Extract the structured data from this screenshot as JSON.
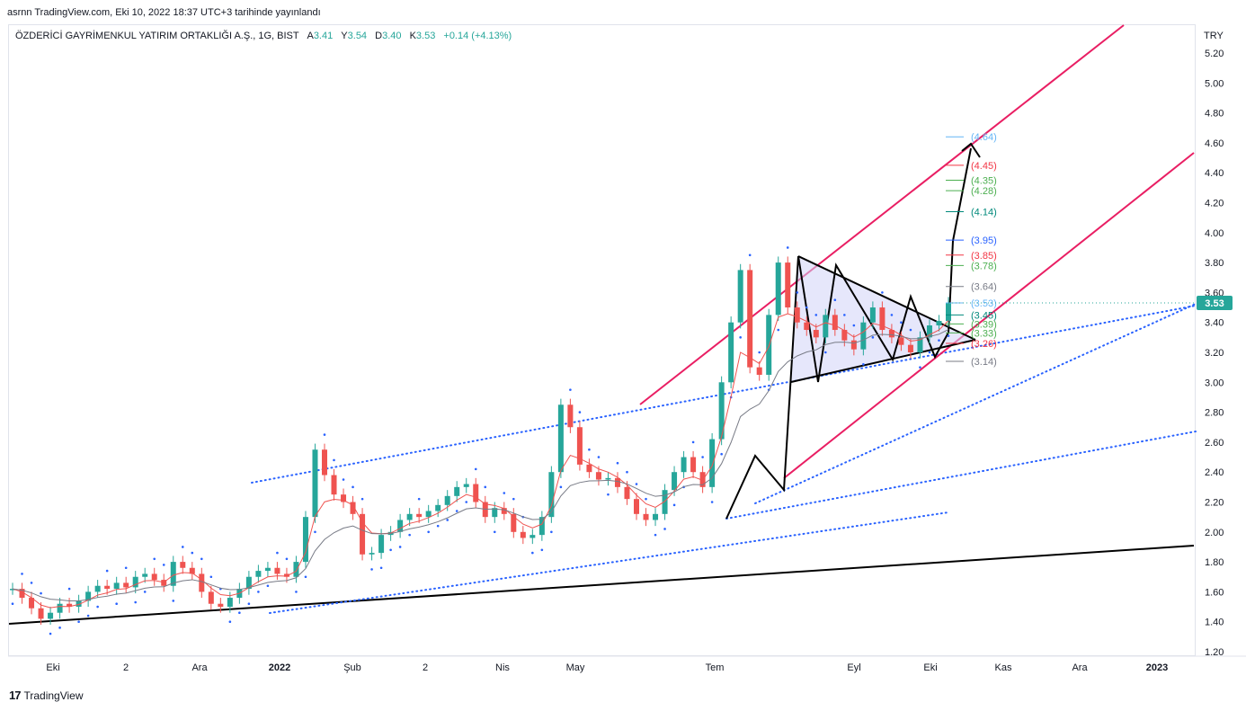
{
  "caption": "asrnn TradingView.com, Eki 10, 2022 18:37 UTC+3 tarihinde yayınlandı",
  "legend": {
    "symbol": "ÖZDERİCİ GAYRİMENKUL YATIRIM ORTAKLIĞI A.Ş., 1G, BIST",
    "o_label": "A",
    "o_value": "3.41",
    "h_label": "Y",
    "h_value": "3.54",
    "l_label": "D",
    "l_value": "3.40",
    "c_label": "K",
    "c_value": "3.53",
    "change": "+0.14 (+4.13%)"
  },
  "currency": "TRY",
  "footer": {
    "logo": "17",
    "brand": "TradingView"
  },
  "chart_data": {
    "type": "line",
    "y_range": [
      1.2,
      5.25
    ],
    "y_ticks": [
      "5.20",
      "5.00",
      "4.80",
      "4.60",
      "4.40",
      "4.20",
      "4.00",
      "3.80",
      "3.60",
      "3.40",
      "3.20",
      "3.00",
      "2.80",
      "2.60",
      "2.40",
      "2.20",
      "2.00",
      "1.80",
      "1.60",
      "1.40",
      "1.20"
    ],
    "x_ticks": [
      "Eki",
      "2",
      "Ara",
      "2022",
      "Şub",
      "2",
      "Nis",
      "May",
      "Tem",
      "Eyl",
      "Eki",
      "Kas",
      "Ara",
      "2023"
    ],
    "last_price": "3.53",
    "colors": {
      "up": "#26a69a",
      "down": "#ef5350",
      "ema_fast": "#ef5350",
      "ema_slow": "#787b86",
      "sar": "#2962ff",
      "channel": "#e91e63",
      "pattern": "#000000",
      "fill": "#d1d4f7",
      "last": "#26a69a"
    },
    "series": [
      {
        "values": [
          1.62,
          1.56,
          1.49,
          1.42,
          1.46,
          1.52,
          1.5,
          1.54,
          1.6,
          1.64,
          1.62,
          1.66,
          1.63,
          1.7,
          1.72,
          1.68,
          1.64,
          1.8,
          1.76,
          1.72,
          1.6,
          1.52,
          1.5,
          1.56,
          1.62,
          1.7,
          1.74,
          1.76,
          1.72,
          1.7,
          1.8,
          2.1,
          2.55,
          2.38,
          2.25,
          2.2,
          2.12,
          1.85,
          1.86,
          1.98,
          2.0,
          2.08,
          2.12,
          2.1,
          2.14,
          2.18,
          2.24,
          2.3,
          2.32,
          2.2,
          2.1,
          2.16,
          2.12,
          2.0,
          1.96,
          1.98,
          2.1,
          2.4,
          2.85,
          2.7,
          2.45,
          2.4,
          2.35,
          2.36,
          2.3,
          2.22,
          2.12,
          2.08,
          2.12,
          2.28,
          2.4,
          2.5,
          2.4,
          2.3,
          2.62,
          3.0,
          3.4,
          3.75,
          3.1,
          3.05,
          3.45,
          3.8,
          3.5,
          3.4,
          3.35,
          3.3,
          3.45,
          3.35,
          3.28,
          3.22,
          3.4,
          3.5,
          3.35,
          3.3,
          3.25,
          3.2,
          3.3,
          3.38,
          3.41,
          3.53
        ]
      }
    ],
    "levels": [
      {
        "label": "(4.64)",
        "value": 4.64,
        "color": "#64b5f6"
      },
      {
        "label": "(4.45)",
        "value": 4.45,
        "color": "#f23645"
      },
      {
        "label": "(4.35)",
        "value": 4.35,
        "color": "#4caf50"
      },
      {
        "label": "(4.28)",
        "value": 4.28,
        "color": "#4caf50"
      },
      {
        "label": "(4.14)",
        "value": 4.14,
        "color": "#00897b"
      },
      {
        "label": "(3.95)",
        "value": 3.95,
        "color": "#2962ff"
      },
      {
        "label": "(3.85)",
        "value": 3.85,
        "color": "#f23645"
      },
      {
        "label": "(3.78)",
        "value": 3.78,
        "color": "#4caf50"
      },
      {
        "label": "(3.64)",
        "value": 3.64,
        "color": "#787b86"
      },
      {
        "label": "(3.53)",
        "value": 3.53,
        "color": "#64b5f6"
      },
      {
        "label": "(3.45)",
        "value": 3.45,
        "color": "#00897b"
      },
      {
        "label": "(3.39)",
        "value": 3.39,
        "color": "#4caf50"
      },
      {
        "label": "(3.33)",
        "value": 3.33,
        "color": "#4caf50"
      },
      {
        "label": "(3.26)",
        "value": 3.26,
        "color": "#f23645"
      },
      {
        "label": "(3.14)",
        "value": 3.14,
        "color": "#787b86"
      }
    ]
  }
}
